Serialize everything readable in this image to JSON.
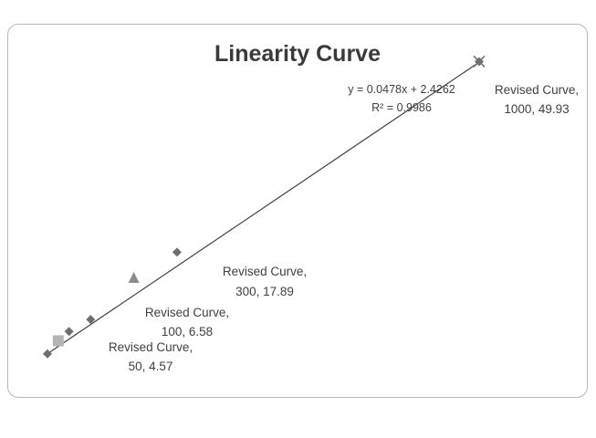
{
  "chart_data": {
    "type": "scatter",
    "title": "Linearity Curve",
    "xlabel": "",
    "ylabel": "",
    "xlim": [
      0,
      1000
    ],
    "ylim": [
      0,
      50
    ],
    "grid": false,
    "legend": "none",
    "series": [
      {
        "marker": "diamond",
        "color": "#6e6e6e",
        "points": [
          [
            0,
            0.8
          ],
          [
            50,
            4.57
          ],
          [
            100,
            6.58
          ],
          [
            300,
            17.89
          ],
          [
            1000,
            49.93
          ]
        ]
      },
      {
        "marker": "square",
        "color": "#b4b4b4",
        "points": [
          [
            25,
            3.0
          ]
        ]
      },
      {
        "marker": "triangle",
        "color": "#8c8c8c",
        "points": [
          [
            200,
            13.5
          ]
        ]
      },
      {
        "marker": "x",
        "color": "#6e6e6e",
        "points": [
          [
            1000,
            49.93
          ]
        ]
      }
    ],
    "trendline": {
      "slope": 0.0478,
      "intercept": 2.4262,
      "equation": "y = 0.0478x + 2.4262",
      "r_squared": "R² = 0.9986"
    },
    "annotations": [
      {
        "line1": "Revised Curve,",
        "line2": "50, 4.57"
      },
      {
        "line1": "Revised Curve,",
        "line2": "100, 6.58"
      },
      {
        "line1": "Revised Curve,",
        "line2": "300, 17.89"
      },
      {
        "line1": "Revised Curve,",
        "line2": "1000, 49.93"
      }
    ]
  }
}
